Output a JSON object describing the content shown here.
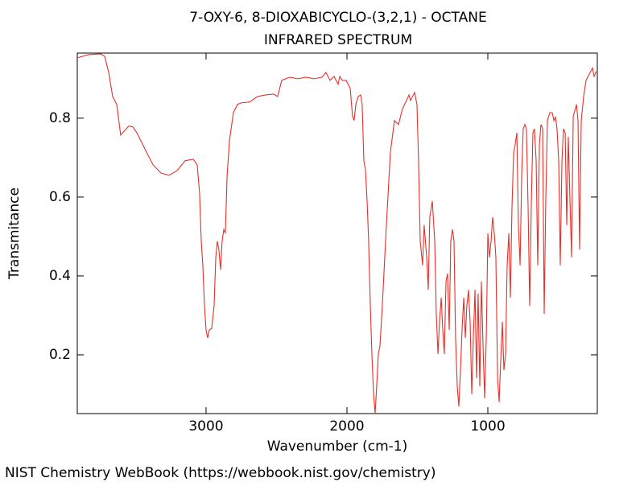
{
  "chart_data": {
    "type": "line",
    "title": "7-OXY-6, 8-DIOXABICYCLO-(3,2,1) - OCTANE",
    "subtitle": "INFRARED SPECTRUM",
    "x_label": "Wavenumber (cm-1)",
    "y_label": "Transmitance",
    "footer": "NIST Chemistry WebBook (https://webbook.nist.gov/chemistry)",
    "color": "#e8302a",
    "xlim": [
      3914,
      223
    ],
    "ylim": [
      0.051,
      0.965
    ],
    "xticks": [
      3000,
      2000,
      1000
    ],
    "yticks": [
      0.2,
      0.4,
      0.6,
      0.8
    ],
    "x": [
      3914,
      3834,
      3749,
      3720,
      3691,
      3663,
      3634,
      3606,
      3577,
      3549,
      3520,
      3491,
      3434,
      3377,
      3320,
      3263,
      3206,
      3149,
      3091,
      3063,
      3046,
      3034,
      3023,
      3011,
      3000,
      2989,
      2977,
      2960,
      2943,
      2931,
      2920,
      2909,
      2897,
      2886,
      2874,
      2863,
      2851,
      2834,
      2806,
      2777,
      2749,
      2692,
      2634,
      2577,
      2520,
      2492,
      2463,
      2406,
      2349,
      2292,
      2234,
      2177,
      2149,
      2120,
      2091,
      2063,
      2051,
      2034,
      2006,
      1977,
      1960,
      1949,
      1937,
      1920,
      1903,
      1892,
      1880,
      1869,
      1857,
      1846,
      1834,
      1823,
      1811,
      1800,
      1789,
      1777,
      1766,
      1749,
      1720,
      1692,
      1663,
      1634,
      1606,
      1577,
      1560,
      1549,
      1520,
      1503,
      1492,
      1480,
      1463,
      1452,
      1434,
      1423,
      1412,
      1394,
      1377,
      1366,
      1354,
      1343,
      1331,
      1320,
      1309,
      1297,
      1286,
      1274,
      1263,
      1251,
      1240,
      1229,
      1217,
      1206,
      1194,
      1183,
      1171,
      1160,
      1149,
      1137,
      1126,
      1114,
      1103,
      1091,
      1080,
      1069,
      1057,
      1046,
      1034,
      1023,
      1011,
      1000,
      989,
      977,
      966,
      954,
      943,
      931,
      920,
      909,
      897,
      886,
      874,
      863,
      851,
      840,
      829,
      817,
      806,
      794,
      783,
      771,
      760,
      749,
      737,
      726,
      714,
      703,
      691,
      680,
      669,
      657,
      646,
      634,
      623,
      611,
      600,
      589,
      577,
      560,
      543,
      531,
      520,
      509,
      497,
      486,
      474,
      463,
      451,
      440,
      429,
      417,
      406,
      394,
      371,
      360,
      349,
      337,
      320,
      303,
      280,
      257,
      246,
      234,
      223
    ],
    "values": [
      0.953,
      0.961,
      0.963,
      0.957,
      0.916,
      0.855,
      0.835,
      0.757,
      0.769,
      0.78,
      0.778,
      0.763,
      0.722,
      0.682,
      0.661,
      0.655,
      0.667,
      0.692,
      0.696,
      0.682,
      0.61,
      0.488,
      0.427,
      0.324,
      0.263,
      0.243,
      0.263,
      0.267,
      0.324,
      0.447,
      0.488,
      0.467,
      0.416,
      0.488,
      0.518,
      0.508,
      0.651,
      0.743,
      0.814,
      0.835,
      0.839,
      0.841,
      0.855,
      0.859,
      0.861,
      0.855,
      0.896,
      0.904,
      0.9,
      0.904,
      0.9,
      0.904,
      0.916,
      0.896,
      0.906,
      0.886,
      0.906,
      0.896,
      0.896,
      0.876,
      0.804,
      0.794,
      0.835,
      0.855,
      0.859,
      0.835,
      0.692,
      0.671,
      0.59,
      0.488,
      0.324,
      0.202,
      0.1,
      0.051,
      0.12,
      0.202,
      0.222,
      0.324,
      0.529,
      0.712,
      0.794,
      0.784,
      0.824,
      0.845,
      0.859,
      0.845,
      0.865,
      0.835,
      0.692,
      0.488,
      0.427,
      0.529,
      0.447,
      0.365,
      0.549,
      0.59,
      0.488,
      0.304,
      0.202,
      0.284,
      0.345,
      0.263,
      0.202,
      0.386,
      0.406,
      0.263,
      0.488,
      0.518,
      0.488,
      0.243,
      0.12,
      0.069,
      0.161,
      0.263,
      0.345,
      0.243,
      0.324,
      0.365,
      0.284,
      0.1,
      0.243,
      0.365,
      0.141,
      0.355,
      0.12,
      0.386,
      0.222,
      0.09,
      0.243,
      0.508,
      0.447,
      0.488,
      0.549,
      0.508,
      0.447,
      0.141,
      0.08,
      0.182,
      0.284,
      0.161,
      0.202,
      0.427,
      0.508,
      0.345,
      0.569,
      0.712,
      0.733,
      0.763,
      0.529,
      0.427,
      0.651,
      0.773,
      0.784,
      0.773,
      0.569,
      0.324,
      0.59,
      0.763,
      0.773,
      0.692,
      0.427,
      0.733,
      0.784,
      0.773,
      0.304,
      0.59,
      0.794,
      0.814,
      0.814,
      0.794,
      0.804,
      0.773,
      0.692,
      0.427,
      0.692,
      0.773,
      0.763,
      0.529,
      0.753,
      0.59,
      0.447,
      0.804,
      0.835,
      0.794,
      0.467,
      0.794,
      0.855,
      0.896,
      0.912,
      0.927,
      0.906,
      0.916,
      0.92
    ]
  }
}
